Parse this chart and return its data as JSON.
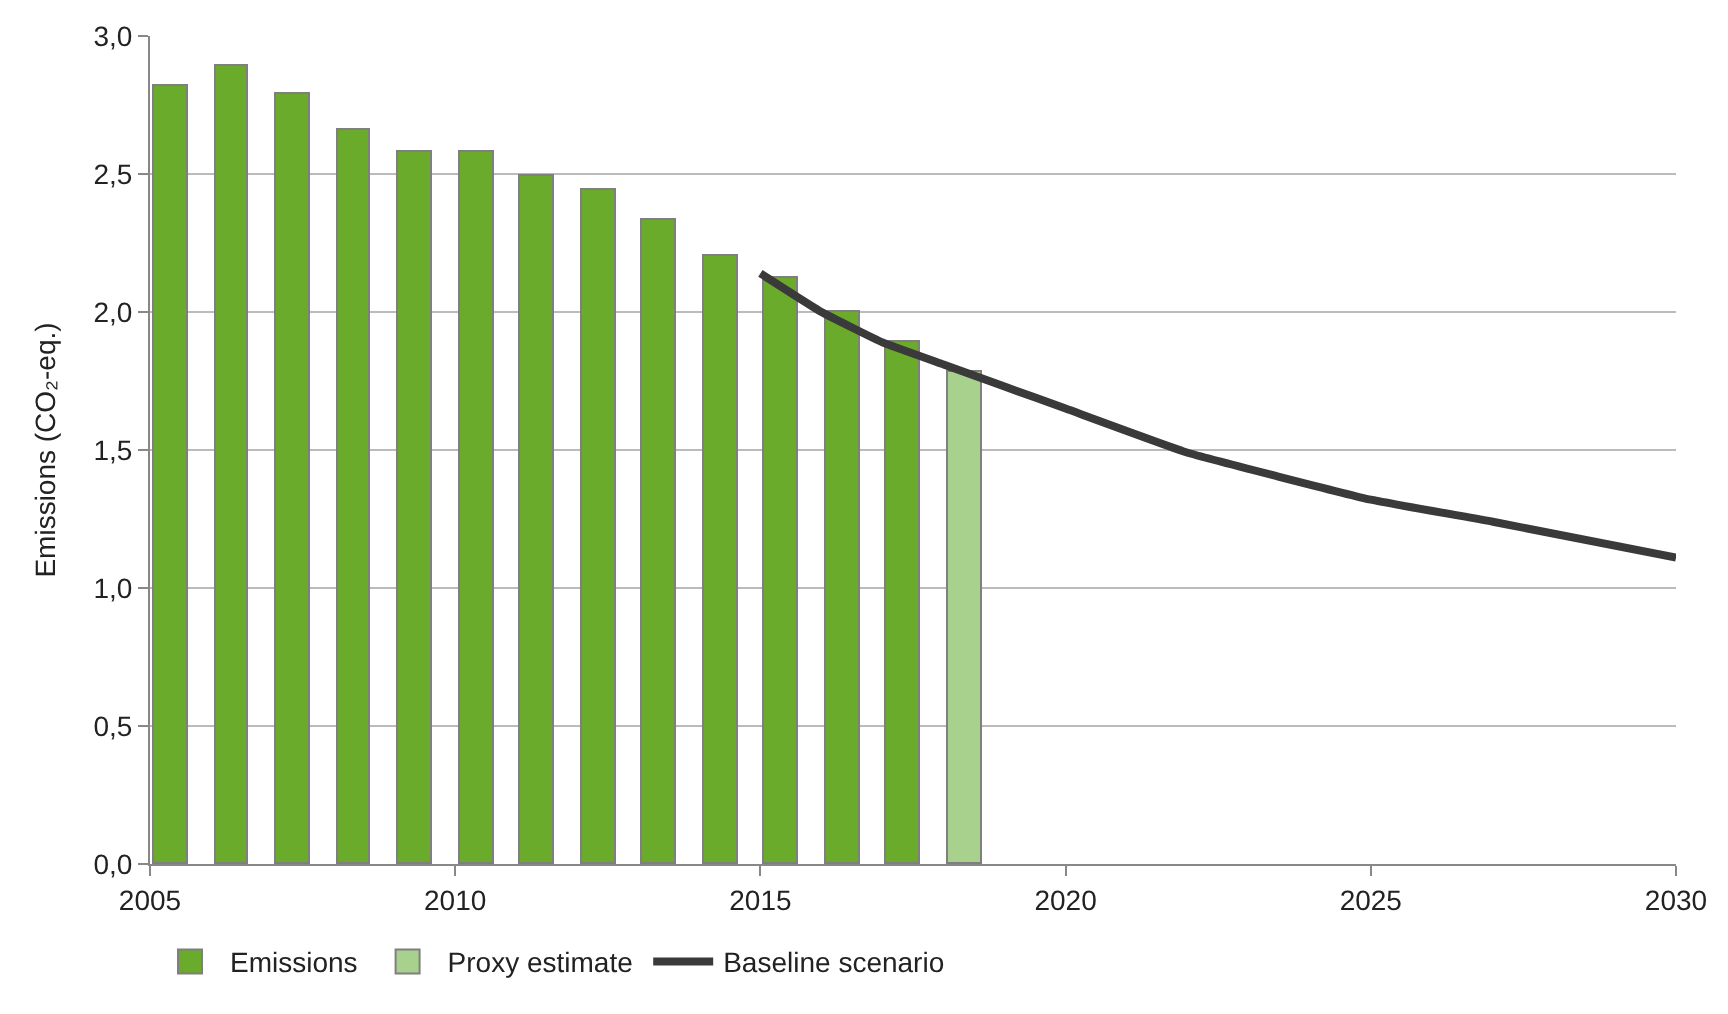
{
  "chart_data": {
    "type": "bar",
    "ylabel": "Emissions (CO₂-eq.)",
    "xlim": [
      2005,
      2030
    ],
    "xticks": [
      2005,
      2010,
      2015,
      2020,
      2025,
      2030
    ],
    "ylim": [
      0,
      3
    ],
    "yticks": [
      {
        "value": 0,
        "label": "0,0"
      },
      {
        "value": 0.5,
        "label": "0,5"
      },
      {
        "value": 1,
        "label": "1,0"
      },
      {
        "value": 1.5,
        "label": "1,5"
      },
      {
        "value": 2,
        "label": "2,0"
      },
      {
        "value": 2.5,
        "label": "2,5"
      },
      {
        "value": 3,
        "label": "3,0"
      }
    ],
    "grid": "y",
    "legend": "bottom",
    "series": [
      {
        "name": "Emissions",
        "color": "#6aab2b",
        "x": [
          2005,
          2006,
          2007,
          2008,
          2009,
          2010,
          2011,
          2012,
          2013,
          2014,
          2015,
          2016,
          2017
        ],
        "values": [
          2.82,
          2.89,
          2.79,
          2.66,
          2.58,
          2.58,
          2.49,
          2.44,
          2.33,
          2.2,
          2.12,
          2.0,
          1.89
        ]
      },
      {
        "name": "Proxy estimate",
        "type": "bar",
        "color": "#a9d18e",
        "x": [
          2018
        ],
        "values": [
          1.78
        ]
      },
      {
        "name": "Baseline scenario",
        "type": "line",
        "color": "#3a3a3a",
        "x": [
          2015,
          2016,
          2017,
          2018,
          2019,
          2020,
          2022,
          2025,
          2027,
          2030
        ],
        "values": [
          2.14,
          2.0,
          1.89,
          1.81,
          1.73,
          1.65,
          1.49,
          1.32,
          1.24,
          1.11
        ]
      }
    ]
  }
}
